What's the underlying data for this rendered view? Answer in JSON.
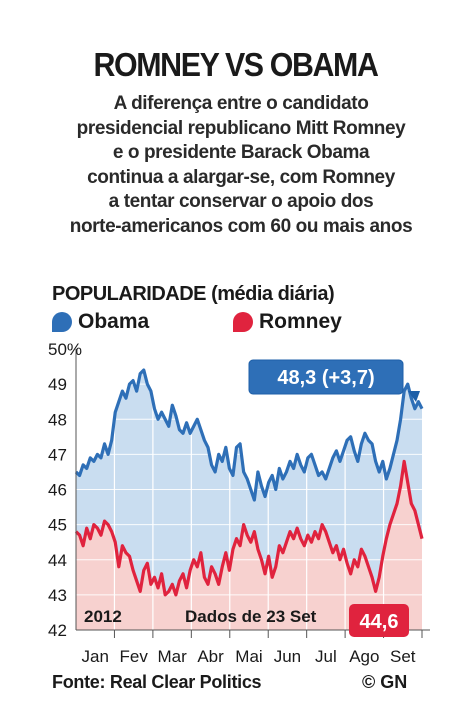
{
  "header": {
    "title": "ROMNEY VS OBAMA",
    "subtitle_lines": [
      "A diferença entre o candidato",
      "presidencial republicano Mitt Romney",
      "e o presidente Barack Obama",
      "continua a alargar-se, com Romney",
      "a tentar conservar o apoio dos",
      "norte-americanos com 60 ou mais anos"
    ]
  },
  "chart_data": {
    "type": "line",
    "title": "POPULARIDADE (média diária)",
    "x_labels": [
      "Jan",
      "Fev",
      "Mar",
      "Abr",
      "Mai",
      "Jun",
      "Jul",
      "Ago",
      "Set"
    ],
    "y_ticks": [
      "50%",
      "49",
      "48",
      "47",
      "46",
      "45",
      "44",
      "43",
      "42"
    ],
    "ylim": [
      42,
      50
    ],
    "year_label": "2012",
    "date_note": "Dados de 23 Set",
    "series": [
      {
        "name": "Obama",
        "color": "#2e6fb7",
        "fill": "#c9ddf0",
        "final_label": "48,3 (+3,7)",
        "values": [
          46.5,
          46.4,
          46.7,
          46.6,
          46.9,
          46.8,
          47.0,
          46.9,
          47.3,
          47.0,
          47.4,
          48.2,
          48.5,
          48.8,
          48.6,
          49.0,
          49.1,
          48.8,
          49.3,
          49.4,
          49.0,
          48.8,
          48.3,
          48.0,
          48.2,
          48.0,
          47.8,
          48.4,
          48.1,
          47.7,
          47.6,
          47.9,
          47.6,
          47.8,
          48.0,
          47.7,
          47.4,
          47.2,
          46.7,
          46.5,
          47.0,
          46.8,
          47.2,
          46.6,
          46.4,
          47.2,
          47.3,
          46.5,
          46.3,
          46.0,
          45.7,
          46.5,
          46.1,
          45.8,
          46.2,
          46.4,
          46.0,
          46.6,
          46.3,
          46.5,
          46.8,
          46.6,
          47.0,
          46.7,
          46.5,
          46.9,
          47.0,
          46.7,
          46.4,
          46.5,
          46.3,
          46.6,
          46.9,
          47.1,
          46.8,
          47.1,
          47.4,
          47.5,
          47.1,
          46.8,
          47.3,
          47.6,
          47.4,
          47.3,
          46.8,
          46.5,
          46.8,
          46.3,
          46.6,
          47.0,
          47.4,
          48.0,
          48.8,
          49.0,
          48.6,
          48.3,
          48.5,
          48.3
        ]
      },
      {
        "name": "Romney",
        "color": "#e0233e",
        "fill": "#f7d1cf",
        "final_label": "44,6",
        "values": [
          44.8,
          44.7,
          44.4,
          44.9,
          44.6,
          45.0,
          44.9,
          44.7,
          45.1,
          45.0,
          44.8,
          44.5,
          43.8,
          44.4,
          44.2,
          44.1,
          43.7,
          43.4,
          43.1,
          43.7,
          43.9,
          43.3,
          43.5,
          43.2,
          43.6,
          43.0,
          43.1,
          43.3,
          43.0,
          43.4,
          43.6,
          43.2,
          43.7,
          44.0,
          43.8,
          44.2,
          43.5,
          43.3,
          43.8,
          43.6,
          43.3,
          43.8,
          44.2,
          43.7,
          44.3,
          44.6,
          44.4,
          45.0,
          44.7,
          44.5,
          44.8,
          44.3,
          44.0,
          43.6,
          44.1,
          43.5,
          43.8,
          44.4,
          44.2,
          44.5,
          44.8,
          44.6,
          44.9,
          44.6,
          44.4,
          44.7,
          44.5,
          44.8,
          44.6,
          45.0,
          44.8,
          44.5,
          44.2,
          44.4,
          44.0,
          44.3,
          43.9,
          43.6,
          44.0,
          43.8,
          44.3,
          44.1,
          43.8,
          43.5,
          43.1,
          43.5,
          44.1,
          44.6,
          45.0,
          45.3,
          45.6,
          46.1,
          46.8,
          46.2,
          45.6,
          45.4,
          45.0,
          44.6
        ]
      }
    ]
  },
  "footer": {
    "source": "Fonte: Real Clear Politics",
    "credit": "© GN"
  }
}
